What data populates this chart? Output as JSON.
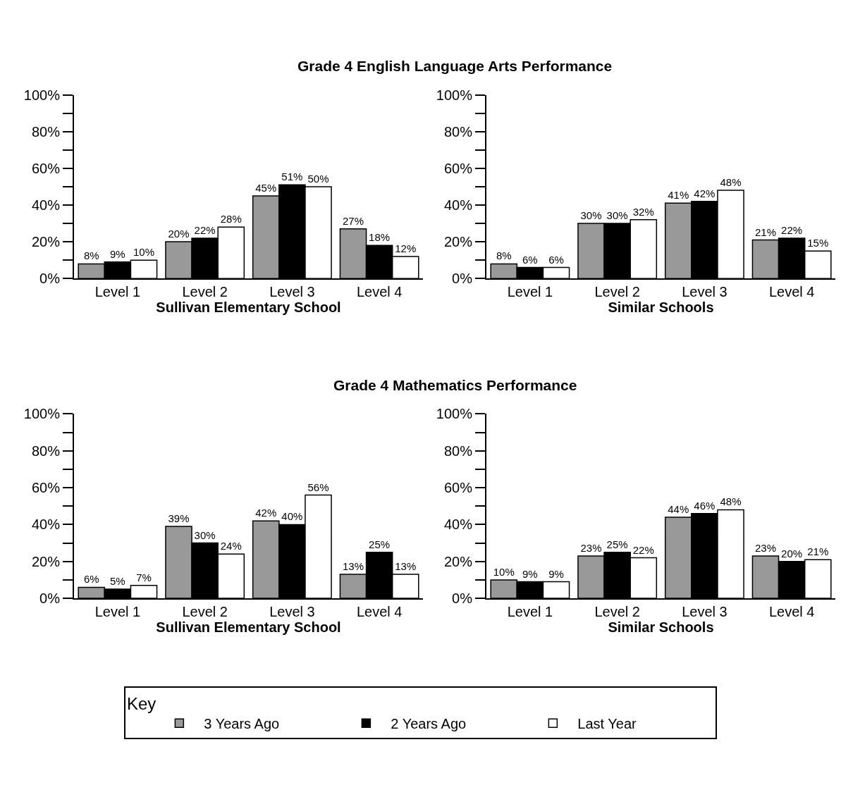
{
  "chart_data": [
    {
      "type": "bar",
      "title": "Grade 4 English Language Arts Performance",
      "xlabel": "Sullivan Elementary School",
      "legend": "bottom",
      "legend_title": "Key",
      "categories": [
        "Level 1",
        "Level 2",
        "Level 3",
        "Level 4"
      ],
      "ylim": [
        0,
        100
      ],
      "yticks": [
        {
          "value": 0,
          "label": "0%"
        },
        {
          "value": 10,
          "label": null
        },
        {
          "value": 20,
          "label": "20%"
        },
        {
          "value": 30,
          "label": null
        },
        {
          "value": 40,
          "label": "40%"
        },
        {
          "value": 50,
          "label": null
        },
        {
          "value": 60,
          "label": "60%"
        },
        {
          "value": 70,
          "label": null
        },
        {
          "value": 80,
          "label": "80%"
        },
        {
          "value": 90,
          "label": null
        },
        {
          "value": 100,
          "label": "100%"
        }
      ],
      "series": [
        {
          "name": "3 Years Ago",
          "color": "#999999",
          "values": [
            8,
            20,
            45,
            27
          ],
          "value_labels": [
            "8%",
            "20%",
            "45%",
            "27%"
          ]
        },
        {
          "name": "2 Years Ago",
          "color": "#000000",
          "values": [
            9,
            22,
            51,
            18
          ],
          "value_labels": [
            "9%",
            "22%",
            "51%",
            "18%"
          ]
        },
        {
          "name": "Last Year",
          "color": "#ffffff",
          "values": [
            10,
            28,
            50,
            12
          ],
          "value_labels": [
            "10%",
            "28%",
            "50%",
            "12%"
          ]
        }
      ]
    },
    {
      "type": "bar",
      "xlabel": "Similar Schools",
      "categories": [
        "Level 1",
        "Level 2",
        "Level 3",
        "Level 4"
      ],
      "ylim": [
        0,
        100
      ],
      "yticks": [
        {
          "value": 0,
          "label": "0%"
        },
        {
          "value": 10,
          "label": null
        },
        {
          "value": 20,
          "label": "20%"
        },
        {
          "value": 30,
          "label": null
        },
        {
          "value": 40,
          "label": "40%"
        },
        {
          "value": 50,
          "label": null
        },
        {
          "value": 60,
          "label": "60%"
        },
        {
          "value": 70,
          "label": null
        },
        {
          "value": 80,
          "label": "80%"
        },
        {
          "value": 90,
          "label": null
        },
        {
          "value": 100,
          "label": "100%"
        }
      ],
      "series": [
        {
          "color": "#999999",
          "values": [
            8,
            30,
            41,
            21
          ],
          "value_labels": [
            "8%",
            "30%",
            "41%",
            "21%"
          ]
        },
        {
          "color": "#000000",
          "values": [
            6,
            30,
            42,
            22
          ],
          "value_labels": [
            "6%",
            "30%",
            "42%",
            "22%"
          ]
        },
        {
          "color": "#ffffff",
          "values": [
            6,
            32,
            48,
            15
          ],
          "value_labels": [
            "6%",
            "32%",
            "48%",
            "15%"
          ]
        }
      ]
    },
    {
      "type": "bar",
      "title": "Grade 4 Mathematics Performance",
      "xlabel": "Sullivan Elementary School",
      "categories": [
        "Level 1",
        "Level 2",
        "Level 3",
        "Level 4"
      ],
      "ylim": [
        0,
        100
      ],
      "yticks": [
        {
          "value": 0,
          "label": "0%"
        },
        {
          "value": 10,
          "label": null
        },
        {
          "value": 20,
          "label": "20%"
        },
        {
          "value": 30,
          "label": null
        },
        {
          "value": 40,
          "label": "40%"
        },
        {
          "value": 50,
          "label": null
        },
        {
          "value": 60,
          "label": "60%"
        },
        {
          "value": 70,
          "label": null
        },
        {
          "value": 80,
          "label": "80%"
        },
        {
          "value": 90,
          "label": null
        },
        {
          "value": 100,
          "label": "100%"
        }
      ],
      "series": [
        {
          "color": "#999999",
          "values": [
            6,
            39,
            42,
            13
          ],
          "value_labels": [
            "6%",
            "39%",
            "42%",
            "13%"
          ]
        },
        {
          "color": "#000000",
          "values": [
            5,
            30,
            40,
            25
          ],
          "value_labels": [
            "5%",
            "30%",
            "40%",
            "25%"
          ]
        },
        {
          "color": "#ffffff",
          "values": [
            7,
            24,
            56,
            13
          ],
          "value_labels": [
            "7%",
            "24%",
            "56%",
            "13%"
          ]
        }
      ]
    },
    {
      "type": "bar",
      "xlabel": "Similar Schools",
      "categories": [
        "Level 1",
        "Level 2",
        "Level 3",
        "Level 4"
      ],
      "ylim": [
        0,
        100
      ],
      "yticks": [
        {
          "value": 0,
          "label": "0%"
        },
        {
          "value": 10,
          "label": null
        },
        {
          "value": 20,
          "label": "20%"
        },
        {
          "value": 30,
          "label": null
        },
        {
          "value": 40,
          "label": "40%"
        },
        {
          "value": 50,
          "label": null
        },
        {
          "value": 60,
          "label": "60%"
        },
        {
          "value": 70,
          "label": null
        },
        {
          "value": 80,
          "label": "80%"
        },
        {
          "value": 90,
          "label": null
        },
        {
          "value": 100,
          "label": "100%"
        }
      ],
      "series": [
        {
          "color": "#999999",
          "values": [
            10,
            23,
            44,
            23
          ],
          "value_labels": [
            "10%",
            "23%",
            "44%",
            "23%"
          ]
        },
        {
          "color": "#000000",
          "values": [
            9,
            25,
            46,
            20
          ],
          "value_labels": [
            "9%",
            "25%",
            "46%",
            "20%"
          ]
        },
        {
          "color": "#ffffff",
          "values": [
            9,
            22,
            48,
            21
          ],
          "value_labels": [
            "9%",
            "22%",
            "48%",
            "21%"
          ]
        }
      ]
    }
  ]
}
